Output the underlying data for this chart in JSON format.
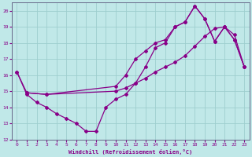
{
  "xlabel": "Windchill (Refroidissement éolien,°C)",
  "bg_color": "#c0e8e8",
  "line_color": "#880088",
  "grid_color": "#aad8d8",
  "xlim": [
    -0.5,
    23.5
  ],
  "ylim": [
    12,
    20.5
  ],
  "yticks": [
    12,
    13,
    14,
    15,
    16,
    17,
    18,
    19,
    20
  ],
  "xticks": [
    0,
    1,
    2,
    3,
    4,
    5,
    6,
    7,
    8,
    9,
    10,
    11,
    12,
    13,
    14,
    15,
    16,
    17,
    18,
    19,
    20,
    21,
    22,
    23
  ],
  "curve1_x": [
    0,
    1,
    2,
    3,
    4,
    5,
    6,
    7,
    8,
    9,
    10,
    11,
    12,
    13,
    14,
    15,
    16,
    17,
    18,
    19,
    20,
    21,
    22,
    23
  ],
  "curve1_y": [
    16.2,
    14.8,
    14.3,
    14.0,
    13.6,
    13.3,
    13.0,
    12.5,
    12.5,
    14.0,
    14.5,
    14.8,
    15.5,
    16.5,
    17.7,
    18.0,
    19.0,
    19.3,
    20.3,
    19.5,
    18.1,
    19.0,
    18.2,
    16.5
  ],
  "curve2_x": [
    0,
    1,
    3,
    10,
    11,
    12,
    13,
    14,
    15,
    16,
    17,
    18,
    19,
    20,
    21,
    22,
    23
  ],
  "curve2_y": [
    16.2,
    14.9,
    14.8,
    15.0,
    15.2,
    15.5,
    15.8,
    16.2,
    16.5,
    16.8,
    17.2,
    17.8,
    18.4,
    18.9,
    19.0,
    18.5,
    16.5
  ],
  "curve3_x": [
    1,
    3,
    10,
    11,
    12,
    13,
    14,
    15,
    16,
    17,
    18,
    19,
    20,
    21,
    22,
    23
  ],
  "curve3_y": [
    14.9,
    14.8,
    15.3,
    16.0,
    17.0,
    17.5,
    18.0,
    18.2,
    19.0,
    19.3,
    20.3,
    19.5,
    18.1,
    19.0,
    18.2,
    16.5
  ]
}
